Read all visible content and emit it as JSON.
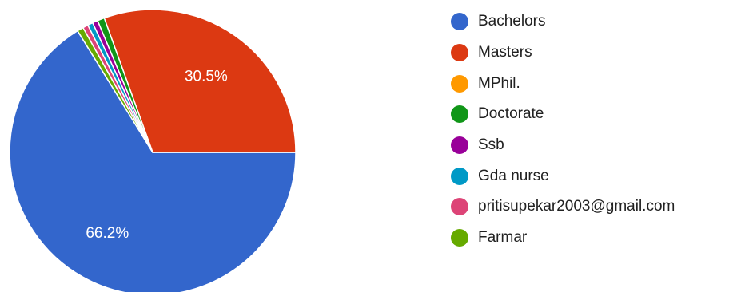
{
  "chart_data": {
    "type": "pie",
    "categories": [
      "Bachelors",
      "Masters",
      "MPhil.",
      "Doctorate",
      "Ssb",
      "Gda nurse",
      "pritisupekar2003@gmail.com",
      "Farmar"
    ],
    "values": [
      66.2,
      30.5,
      0.0,
      0.8,
      0.6,
      0.6,
      0.6,
      0.7
    ],
    "colors": [
      "#3366cc",
      "#dc3912",
      "#ff9900",
      "#109618",
      "#990099",
      "#0099c6",
      "#dd4477",
      "#66aa00"
    ],
    "data_labels": [
      "66.2%",
      "30.5%",
      "",
      "",
      "",
      "",
      "",
      ""
    ],
    "legend_position": "right"
  }
}
